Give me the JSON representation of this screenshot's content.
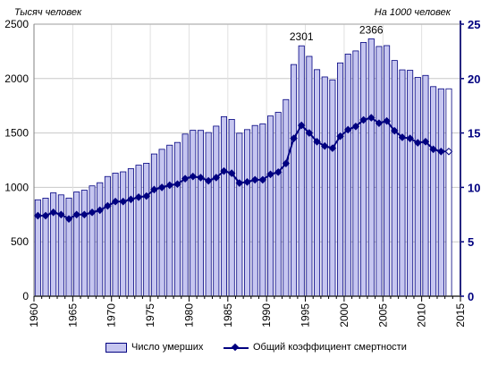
{
  "units": {
    "left": "Тысяч человек",
    "right": "На 1000 человек"
  },
  "legend": {
    "deaths": "Число умерших",
    "rate": "Общий коэффициент смертности"
  },
  "colors": {
    "bar_fill": "#c6c6f0",
    "bar_stroke": "#000080",
    "line": "#000080",
    "axis": "#000080"
  },
  "chart_data": {
    "type": "bar",
    "xlim": [
      1960,
      2015
    ],
    "x_ticks": [
      1960,
      1965,
      1970,
      1975,
      1980,
      1985,
      1990,
      1995,
      2000,
      2005,
      2010,
      2015
    ],
    "ylim_left": [
      0,
      2500
    ],
    "y_ticks_left": [
      0,
      500,
      1000,
      1500,
      2000,
      2500
    ],
    "ylim_right": [
      0,
      25
    ],
    "y_ticks_right": [
      0,
      5,
      10,
      15,
      20,
      25
    ],
    "grid": true,
    "legend_position": "bottom",
    "x": [
      1960,
      1961,
      1962,
      1963,
      1964,
      1965,
      1966,
      1967,
      1968,
      1969,
      1970,
      1971,
      1972,
      1973,
      1974,
      1975,
      1976,
      1977,
      1978,
      1979,
      1980,
      1981,
      1982,
      1983,
      1984,
      1985,
      1986,
      1987,
      1988,
      1989,
      1990,
      1991,
      1992,
      1993,
      1994,
      1995,
      1996,
      1997,
      1998,
      1999,
      2000,
      2001,
      2002,
      2003,
      2004,
      2005,
      2006,
      2007,
      2008,
      2009,
      2010,
      2011,
      2012,
      2013
    ],
    "series": [
      {
        "name": "Число умерших",
        "axis": "left",
        "type": "bar",
        "values": [
          886,
          901,
          950,
          931,
          902,
          958,
          974,
          1014,
          1043,
          1100,
          1131,
          1143,
          1172,
          1204,
          1222,
          1307,
          1350,
          1388,
          1413,
          1490,
          1525,
          1524,
          1504,
          1563,
          1650,
          1625,
          1498,
          1531,
          1569,
          1583,
          1656,
          1690,
          1807,
          2129,
          2301,
          2204,
          2082,
          2015,
          1988,
          2144,
          2225,
          2254,
          2332,
          2366,
          2295,
          2303,
          2166,
          2080,
          2076,
          2011,
          2029,
          1926,
          1906,
          1906
        ]
      },
      {
        "name": "Общий коэффициент смертности",
        "axis": "right",
        "type": "line",
        "values": [
          7.4,
          7.4,
          7.7,
          7.5,
          7.1,
          7.5,
          7.5,
          7.7,
          7.9,
          8.3,
          8.7,
          8.7,
          8.9,
          9.1,
          9.2,
          9.8,
          10.0,
          10.2,
          10.3,
          10.8,
          11.0,
          10.9,
          10.6,
          10.9,
          11.5,
          11.3,
          10.4,
          10.5,
          10.7,
          10.7,
          11.2,
          11.4,
          12.2,
          14.5,
          15.7,
          15.0,
          14.2,
          13.8,
          13.6,
          14.7,
          15.3,
          15.6,
          16.2,
          16.4,
          15.9,
          16.1,
          15.2,
          14.6,
          14.5,
          14.1,
          14.2,
          13.5,
          13.3,
          13.3
        ]
      }
    ],
    "annotations": [
      {
        "x": 1994,
        "series": "Число умерших",
        "label": "2301"
      },
      {
        "x": 2003,
        "series": "Число умерших",
        "label": "2366"
      }
    ],
    "open_point_years": [
      2013
    ]
  }
}
